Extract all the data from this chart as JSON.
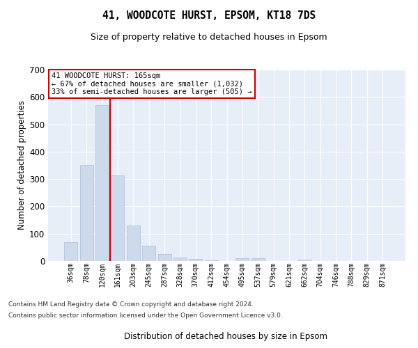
{
  "title1": "41, WOODCOTE HURST, EPSOM, KT18 7DS",
  "title2": "Size of property relative to detached houses in Epsom",
  "xlabel": "Distribution of detached houses by size in Epsom",
  "ylabel": "Number of detached properties",
  "categories": [
    "36sqm",
    "78sqm",
    "120sqm",
    "161sqm",
    "203sqm",
    "245sqm",
    "287sqm",
    "328sqm",
    "370sqm",
    "412sqm",
    "454sqm",
    "495sqm",
    "537sqm",
    "579sqm",
    "621sqm",
    "662sqm",
    "704sqm",
    "746sqm",
    "788sqm",
    "829sqm",
    "871sqm"
  ],
  "values": [
    70,
    352,
    570,
    313,
    130,
    57,
    25,
    13,
    7,
    3,
    0,
    10,
    10,
    0,
    0,
    5,
    0,
    0,
    0,
    0,
    0
  ],
  "bar_color": "#ccdaeb",
  "bar_edgecolor": "#aabfd8",
  "vline_x": 2.5,
  "vline_color": "#cc0000",
  "annotation_text": "41 WOODCOTE HURST: 165sqm\n← 67% of detached houses are smaller (1,032)\n33% of semi-detached houses are larger (505) →",
  "annotation_box_facecolor": "white",
  "annotation_box_edgecolor": "#cc0000",
  "ylim": [
    0,
    700
  ],
  "yticks": [
    0,
    100,
    200,
    300,
    400,
    500,
    600,
    700
  ],
  "background_color": "#e8eef8",
  "grid_color": "#ffffff",
  "footnote_line1": "Contains HM Land Registry data © Crown copyright and database right 2024.",
  "footnote_line2": "Contains public sector information licensed under the Open Government Licence v3.0."
}
